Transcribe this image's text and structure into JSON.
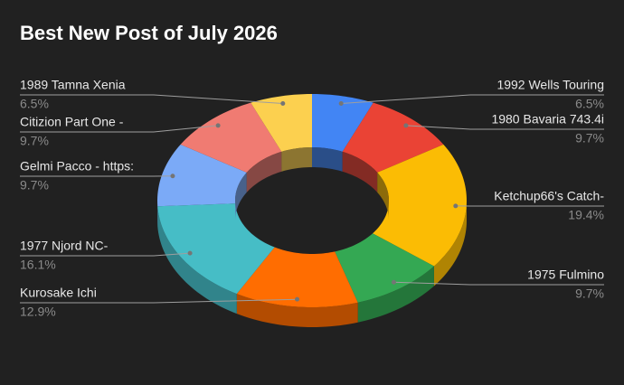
{
  "chart_data": {
    "type": "pie",
    "title": "Best New Post of July 2026",
    "categories": [
      "1992 Wells Touring",
      "1980 Bavaria 743.4i",
      "Ketchup66's Catch-",
      "1975 Fulmino",
      "Kurosake Ichi",
      "1977 Njord NC-",
      "Gelmi Pacco - https:",
      "Citizion Part One -",
      "1989 Tamna Xenia"
    ],
    "values": [
      6.5,
      9.7,
      19.4,
      9.7,
      12.9,
      16.1,
      9.7,
      9.7,
      6.5
    ],
    "value_labels": [
      "6.5%",
      "9.7%",
      "19.4%",
      "9.7%",
      "12.9%",
      "16.1%",
      "9.7%",
      "9.7%",
      "6.5%"
    ],
    "colors": [
      "#4285f4",
      "#ea4335",
      "#fbbc04",
      "#34a853",
      "#ff6d01",
      "#46bdc6",
      "#7baaf7",
      "#f07b72",
      "#fcd04f"
    ]
  }
}
